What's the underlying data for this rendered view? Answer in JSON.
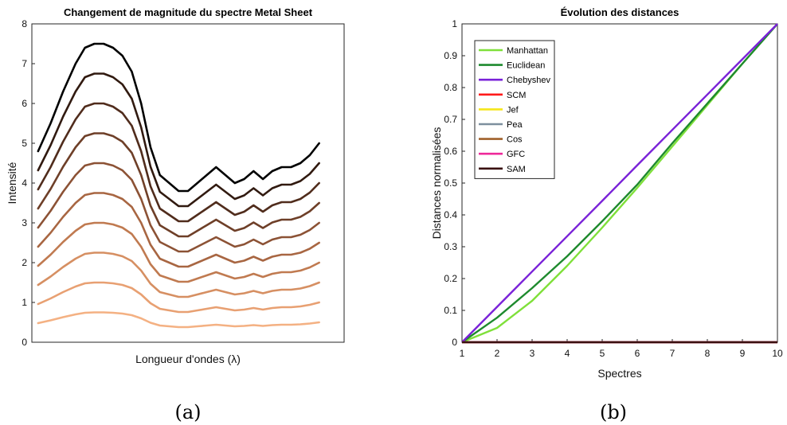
{
  "chart_data": [
    {
      "type": "line",
      "title": "Changement de magnitude du spectre Metal Sheet",
      "xlabel": "Longueur d'ondes (λ)",
      "ylabel": "Intensité",
      "xlim": [
        0,
        1
      ],
      "ylim": [
        0,
        8
      ],
      "yticks": [
        "0",
        "1",
        "2",
        "3",
        "4",
        "5",
        "6",
        "7",
        "8"
      ],
      "x_ticks_visible": false,
      "x": [
        0.02,
        0.06,
        0.1,
        0.14,
        0.17,
        0.2,
        0.23,
        0.26,
        0.29,
        0.32,
        0.35,
        0.38,
        0.41,
        0.44,
        0.47,
        0.5,
        0.53,
        0.56,
        0.59,
        0.62,
        0.65,
        0.68,
        0.71,
        0.74,
        0.77,
        0.8,
        0.83,
        0.86,
        0.89,
        0.92
      ],
      "base_shape": [
        0.48,
        0.55,
        0.63,
        0.7,
        0.74,
        0.75,
        0.75,
        0.74,
        0.72,
        0.68,
        0.6,
        0.49,
        0.42,
        0.4,
        0.38,
        0.38,
        0.4,
        0.42,
        0.44,
        0.42,
        0.4,
        0.41,
        0.43,
        0.41,
        0.43,
        0.44,
        0.44,
        0.45,
        0.47,
        0.5
      ],
      "series": [
        {
          "scale": 1,
          "color": "#f4b183"
        },
        {
          "scale": 2,
          "color": "#e8a072"
        },
        {
          "scale": 3,
          "color": "#d68f62"
        },
        {
          "scale": 4,
          "color": "#c07a50"
        },
        {
          "scale": 5,
          "color": "#a86642"
        },
        {
          "scale": 6,
          "color": "#8c5235"
        },
        {
          "scale": 7,
          "color": "#6e3f28"
        },
        {
          "scale": 8,
          "color": "#502c1c"
        },
        {
          "scale": 9,
          "color": "#311a10"
        },
        {
          "scale": 10,
          "color": "#000000"
        }
      ],
      "caption": "(a)"
    },
    {
      "type": "line",
      "title": "Évolution des distances",
      "xlabel": "Spectres",
      "ylabel": "Distances normalisées",
      "xlim": [
        1,
        10
      ],
      "ylim": [
        0,
        1
      ],
      "xticks": [
        "1",
        "2",
        "3",
        "4",
        "5",
        "6",
        "7",
        "8",
        "9",
        "10"
      ],
      "yticks": [
        "0",
        "0.1",
        "0.2",
        "0.3",
        "0.4",
        "0.5",
        "0.6",
        "0.7",
        "0.8",
        "0.9",
        "1"
      ],
      "x": [
        1,
        2,
        3,
        4,
        5,
        6,
        7,
        8,
        9,
        10
      ],
      "legend_position": "top-left",
      "series": [
        {
          "name": "Manhattan",
          "color": "#7fe03a",
          "values": [
            0,
            0.045,
            0.13,
            0.24,
            0.36,
            0.485,
            0.615,
            0.745,
            0.875,
            1
          ]
        },
        {
          "name": "Euclidean",
          "color": "#1e8a2e",
          "values": [
            0,
            0.077,
            0.17,
            0.27,
            0.38,
            0.495,
            0.625,
            0.75,
            0.875,
            1
          ]
        },
        {
          "name": "Chebyshev",
          "color": "#7a22d8",
          "values": [
            0,
            0.111,
            0.222,
            0.333,
            0.444,
            0.556,
            0.667,
            0.778,
            0.889,
            1
          ]
        },
        {
          "name": "SCM",
          "color": "#ff1a1a",
          "values": [
            0,
            0,
            0,
            0,
            0,
            0,
            0,
            0,
            0,
            0
          ]
        },
        {
          "name": "Jef",
          "color": "#f5e61a",
          "values": [
            0,
            0,
            0,
            0,
            0,
            0,
            0,
            0,
            0,
            0
          ]
        },
        {
          "name": "Pea",
          "color": "#7d8f9e",
          "values": [
            0,
            0,
            0,
            0,
            0,
            0,
            0,
            0,
            0,
            0
          ]
        },
        {
          "name": "Cos",
          "color": "#a0602a",
          "values": [
            0,
            0,
            0,
            0,
            0,
            0,
            0,
            0,
            0,
            0
          ]
        },
        {
          "name": "GFC",
          "color": "#ee2a9a",
          "values": [
            0,
            0,
            0,
            0,
            0,
            0,
            0,
            0,
            0,
            0
          ]
        },
        {
          "name": "SAM",
          "color": "#3a1010",
          "values": [
            0,
            0,
            0,
            0,
            0,
            0,
            0,
            0,
            0,
            0
          ]
        }
      ],
      "caption": "(b)"
    }
  ]
}
